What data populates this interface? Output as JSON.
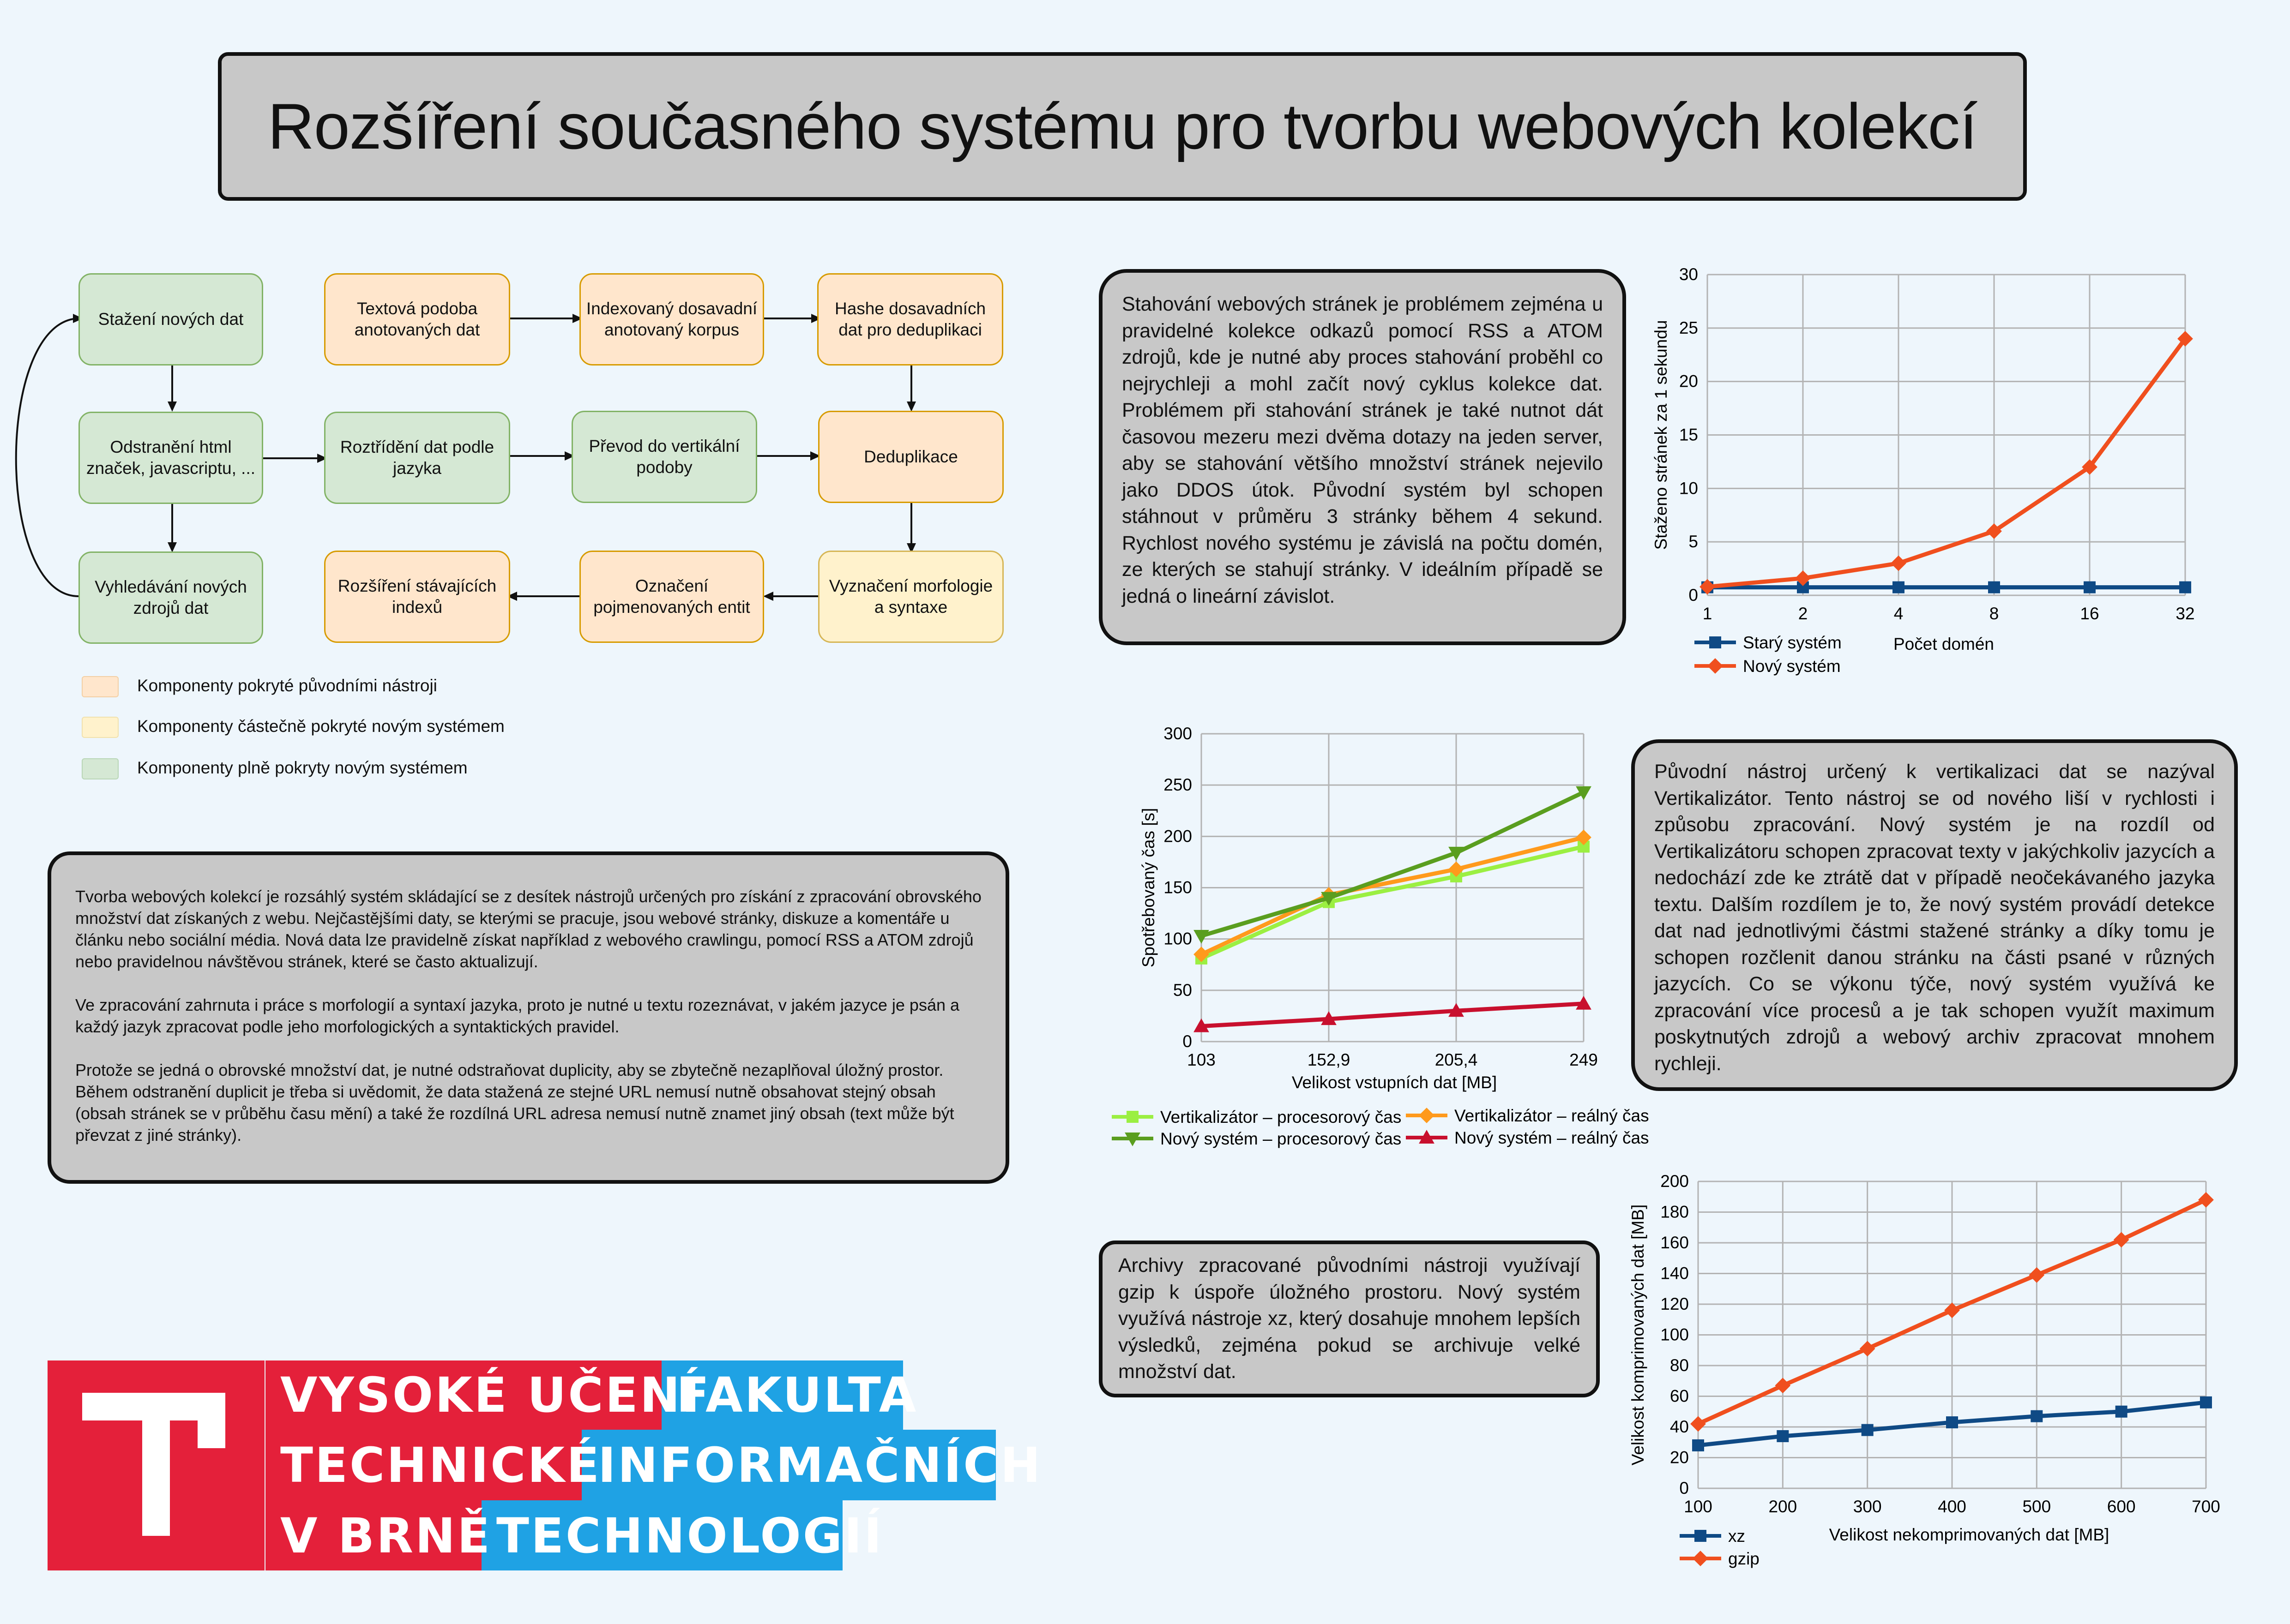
{
  "title": "Rozšíření současného systému pro tvorbu webových kolekcí",
  "diagram": {
    "nodes": {
      "stazeni": "Stažení nových dat",
      "textova": "Textová podoba anotovaných dat",
      "indexovany": "Indexovaný dosavadní anotovaný korpus",
      "hashe": "Hashe dosavadních dat pro deduplikaci",
      "odstraneni": "Odstranění html značek, javascriptu, ...",
      "roztrideni": "Roztřídění dat podle jazyka",
      "prevod": "Převod do vertikální podoby",
      "deduplikace": "Deduplikace",
      "vyhledavani": "Vyhledávání nových zdrojů dat",
      "rozsireni": "Rozšíření stávajících indexů",
      "oznaceni": "Označení pojmenovaných entit",
      "vyznaceni": "Vyznačení morfologie a syntaxe"
    },
    "legend": [
      {
        "label": "Komponenty pokryté původními nástroji",
        "color": "#ffe6cc"
      },
      {
        "label": "Komponenty částečně pokryté novým systémem",
        "color": "#fff2cc"
      },
      {
        "label": "Komponenty plně pokryty novým systémem",
        "color": "#d5e8d4"
      }
    ]
  },
  "intro": {
    "p1": "Tvorba webových kolekcí je rozsáhlý systém skládající se z desítek nástrojů určených pro získání z zpracování obrovského množství dat získaných z webu. Nejčastějšími daty, se kterými se pracuje, jsou webové stránky, diskuze a komentáře u článku nebo sociální média. Nová data lze pravidelně získat například z webového crawlingu, pomocí RSS a ATOM zdrojů nebo pravidelnou návštěvou stránek, které se často aktualizují.",
    "p2": "Ve zpracování zahrnuta i práce s morfologií a syntaxí jazyka, proto je nutné u textu rozeznávat, v jakém jazyce je psán a každý jazyk zpracovat podle jeho morfologických a syntaktických pravidel.",
    "p3": "Protože se jedná o obrovské množství dat, je nutné odstraňovat duplicity, aby se zbytečně nezaplňoval úložný prostor. Během odstranění duplicit je třeba si uvědomit, že data stažená ze stejné URL nemusí nutně obsahovat stejný obsah (obsah stránek se v průběhu času mění) a také že rozdílná URL adresa nemusí nutně znamet jiný obsah (text může být převzat z jiné stránky)."
  },
  "text_download": "Stahování webových stránek je problémem zejména u pravidelné kolekce odkazů pomocí RSS a ATOM zdrojů, kde je nutné aby proces stahování proběhl co nejrychleji a mohl začít nový cyklus kolekce dat. Problémem při stahování stránek je také nutnot dát časovou mezeru mezi dvěma dotazy na jeden server, aby se stahování většího množství stránek nejevilo jako DDOS útok. Původní systém byl schopen stáhnout v průměru 3 stránky během 4 sekund. Rychlost nového systému je závislá na počtu domén, ze kterých se stahují stránky. V ideálním případě se jedná o lineární závislot.",
  "text_vertical": "Původní nástroj určený k vertikalizaci dat se nazýval Vertikalizátor.  Tento nástroj se od nového liší v rychlosti i způsobu zpracování. Nový systém je na rozdíl od Vertikalizátoru schopen zpracovat texty v jakýchkoliv jazycích a nedochází zde ke ztrátě dat v případě neočekávaného jazyka textu. Dalším rozdílem je to, že nový systém provádí detekce dat nad jednotlivými částmi stažené stránky a díky tomu je schopen rozčlenit danou stránku na části psané v různých jazycích. Co se výkonu týče, nový systém využívá ke zpracování více procesů a je tak schopen využít maximum poskytnutých zdrojů a webový archiv zpracovat mnohem rychleji.",
  "text_archive": "Archivy zpracované původními nástroji využívají gzip k úspoře úložného prostoru. Nový systém využívá nástroje xz, který dosahuje mnohem lepších výsledků, zejména pokud se archivuje velké množství dat.",
  "logo": {
    "line1_red": "VYSOKÉ UČENÍ",
    "line1_blue": "FAKULTA",
    "line2_red": "TECHNICKÉ",
    "line2_blue": "INFORMAČNÍCH",
    "line3_red": "V BRNĚ",
    "line3_blue": "TECHNOLOGIÍ"
  },
  "chart_data": [
    {
      "type": "line",
      "categories": [
        "1",
        "2",
        "4",
        "8",
        "16",
        "32"
      ],
      "xlabel": "Počet domén",
      "ylabel": "Staženo stránek za 1 sekundu",
      "ylim": [
        0,
        30
      ],
      "yticks": [
        0,
        5,
        10,
        15,
        20,
        25,
        30
      ],
      "grid": true,
      "legend": "bottom-left",
      "series": [
        {
          "name": "Starý systém",
          "values": [
            0.75,
            0.75,
            0.75,
            0.75,
            0.75,
            0.75
          ],
          "color": "#0f4a85",
          "marker": "square"
        },
        {
          "name": "Nový systém",
          "values": [
            0.8,
            1.6,
            3.0,
            6.0,
            12.0,
            24.0
          ],
          "color": "#f04f1e",
          "marker": "diamond"
        }
      ]
    },
    {
      "type": "line",
      "categories": [
        "103",
        "152,9",
        "205,4",
        "249"
      ],
      "xlabel": "Velikost vstupních dat [MB]",
      "ylabel": "Spotřebovaný čas [s]",
      "ylim": [
        0,
        300
      ],
      "yticks": [
        0,
        50,
        100,
        150,
        200,
        250,
        300
      ],
      "grid": true,
      "legend": "bottom",
      "series": [
        {
          "name": "Vertikalizátor – procesorový čas",
          "values": [
            81,
            136,
            161,
            190
          ],
          "color": "#9bef42",
          "marker": "square"
        },
        {
          "name": "Vertikalizátor – reálný čas",
          "values": [
            85,
            143,
            168,
            199
          ],
          "color": "#ff9a1c",
          "marker": "diamond"
        },
        {
          "name": "Nový systém – procesorový čas",
          "values": [
            103,
            140,
            184,
            243
          ],
          "color": "#5a9e1f",
          "marker": "triangle-down"
        },
        {
          "name": "Nový systém – reálný čas",
          "values": [
            15,
            22,
            30,
            37
          ],
          "color": "#c8102e",
          "marker": "triangle-up"
        }
      ]
    },
    {
      "type": "line",
      "categories": [
        "100",
        "200",
        "300",
        "400",
        "500",
        "600",
        "700"
      ],
      "xlabel": "Velikost nekomprimovaných dat [MB]",
      "ylabel": "Velikost komprimovaných dat [MB]",
      "ylim": [
        0,
        200
      ],
      "yticks": [
        0,
        20,
        40,
        60,
        80,
        100,
        120,
        140,
        160,
        180,
        200
      ],
      "grid": true,
      "legend": "bottom-left",
      "series": [
        {
          "name": "xz",
          "values": [
            28,
            34,
            38,
            43,
            47,
            50,
            56
          ],
          "color": "#0f4a85",
          "marker": "square"
        },
        {
          "name": "gzip",
          "values": [
            42,
            67,
            91,
            116,
            139,
            162,
            188
          ],
          "color": "#f04f1e",
          "marker": "diamond"
        }
      ]
    }
  ]
}
